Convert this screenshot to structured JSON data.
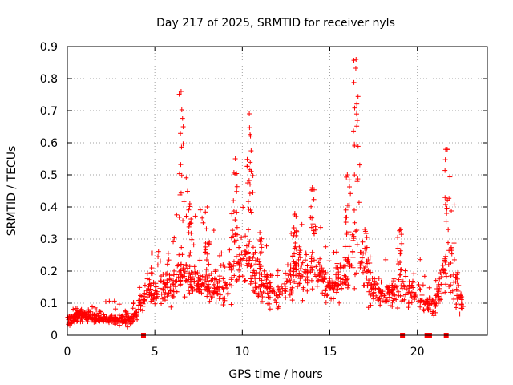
{
  "chart_data": {
    "type": "scatter",
    "title": "Day 217 of 2025, SRMTID for receiver nyls",
    "xlabel": "GPS time / hours",
    "ylabel": "SRMTID / TECUs",
    "xlim": [
      0,
      24
    ],
    "ylim": [
      0,
      0.9
    ],
    "x_ticks": [
      0,
      5,
      10,
      15,
      20
    ],
    "y_ticks": [
      0,
      0.1,
      0.2,
      0.3,
      0.4,
      0.5,
      0.6,
      0.7,
      0.8,
      0.9
    ],
    "x_tick_labels": [
      "0",
      "5",
      "10",
      "15",
      "20"
    ],
    "y_tick_labels": [
      "0",
      "0.1",
      "0.2",
      "0.3",
      "0.4",
      "0.5",
      "0.6",
      "0.7",
      "0.8",
      "0.9"
    ],
    "grid": true,
    "marker": "+",
    "color": "#ff0000",
    "baseline_markers_x": [
      4.35,
      19.15,
      20.55,
      20.7,
      21.65
    ],
    "series": [
      {
        "name": "SRMTID",
        "envelope": [
          {
            "x": 0.0,
            "low": 0.02,
            "mid": 0.045,
            "high": 0.08
          },
          {
            "x": 1.0,
            "low": 0.03,
            "mid": 0.06,
            "high": 0.09
          },
          {
            "x": 2.0,
            "low": 0.03,
            "mid": 0.05,
            "high": 0.09
          },
          {
            "x": 2.5,
            "low": 0.03,
            "mid": 0.05,
            "high": 0.13
          },
          {
            "x": 3.5,
            "low": 0.02,
            "mid": 0.045,
            "high": 0.08
          },
          {
            "x": 4.0,
            "low": 0.04,
            "mid": 0.07,
            "high": 0.15
          },
          {
            "x": 4.5,
            "low": 0.06,
            "mid": 0.13,
            "high": 0.23
          },
          {
            "x": 5.0,
            "low": 0.07,
            "mid": 0.13,
            "high": 0.28
          },
          {
            "x": 6.0,
            "low": 0.08,
            "mid": 0.15,
            "high": 0.25
          },
          {
            "x": 6.5,
            "low": 0.1,
            "mid": 0.2,
            "high": 0.76
          },
          {
            "x": 7.0,
            "low": 0.1,
            "mid": 0.16,
            "high": 0.41
          },
          {
            "x": 8.0,
            "low": 0.1,
            "mid": 0.16,
            "high": 0.4
          },
          {
            "x": 9.0,
            "low": 0.06,
            "mid": 0.14,
            "high": 0.28
          },
          {
            "x": 9.6,
            "low": 0.1,
            "mid": 0.24,
            "high": 0.55
          },
          {
            "x": 10.4,
            "low": 0.1,
            "mid": 0.22,
            "high": 0.69
          },
          {
            "x": 11.0,
            "low": 0.08,
            "mid": 0.16,
            "high": 0.32
          },
          {
            "x": 12.0,
            "low": 0.05,
            "mid": 0.12,
            "high": 0.25
          },
          {
            "x": 13.0,
            "low": 0.07,
            "mid": 0.19,
            "high": 0.38
          },
          {
            "x": 14.0,
            "low": 0.1,
            "mid": 0.2,
            "high": 0.46
          },
          {
            "x": 15.0,
            "low": 0.08,
            "mid": 0.15,
            "high": 0.28
          },
          {
            "x": 16.0,
            "low": 0.08,
            "mid": 0.2,
            "high": 0.5
          },
          {
            "x": 16.5,
            "low": 0.1,
            "mid": 0.28,
            "high": 0.86
          },
          {
            "x": 17.0,
            "low": 0.08,
            "mid": 0.18,
            "high": 0.33
          },
          {
            "x": 18.0,
            "low": 0.07,
            "mid": 0.12,
            "high": 0.22
          },
          {
            "x": 19.0,
            "low": 0.07,
            "mid": 0.14,
            "high": 0.33
          },
          {
            "x": 20.0,
            "low": 0.07,
            "mid": 0.12,
            "high": 0.26
          },
          {
            "x": 21.0,
            "low": 0.04,
            "mid": 0.08,
            "high": 0.14
          },
          {
            "x": 21.7,
            "low": 0.06,
            "mid": 0.25,
            "high": 0.58
          },
          {
            "x": 22.5,
            "low": 0.03,
            "mid": 0.1,
            "high": 0.25
          },
          {
            "x": 22.8,
            "low": 0.03,
            "mid": 0.07,
            "high": 0.15
          }
        ]
      }
    ]
  }
}
